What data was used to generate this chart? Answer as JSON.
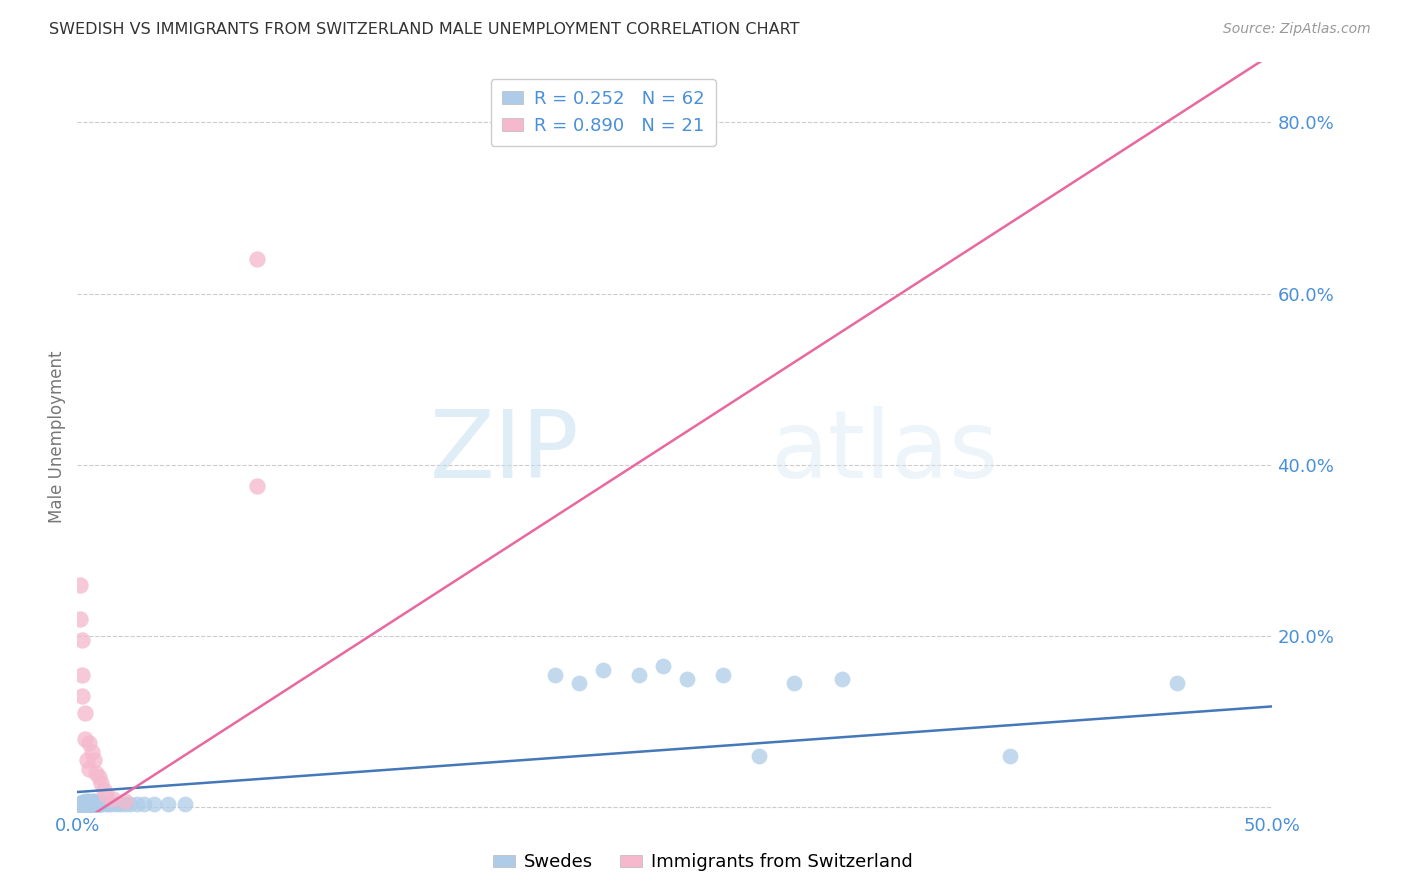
{
  "title": "SWEDISH VS IMMIGRANTS FROM SWITZERLAND MALE UNEMPLOYMENT CORRELATION CHART",
  "source": "Source: ZipAtlas.com",
  "ylabel": "Male Unemployment",
  "xlim": [
    0.0,
    0.5
  ],
  "ylim": [
    -0.005,
    0.87
  ],
  "grid_color": "#cccccc",
  "background_color": "#ffffff",
  "watermark_zip": "ZIP",
  "watermark_atlas": "atlas",
  "swedes_R": 0.252,
  "swedes_N": 62,
  "immigrants_R": 0.89,
  "immigrants_N": 21,
  "swedes_color": "#aecce8",
  "swedes_edge_color": "#aecce8",
  "swedes_line_color": "#4478b8",
  "immigrants_color": "#f5b8cc",
  "immigrants_edge_color": "#f5b8cc",
  "immigrants_line_color": "#e868a0",
  "sw_line_x0": 0.0,
  "sw_line_x1": 0.5,
  "sw_line_y0": 0.018,
  "sw_line_y1": 0.118,
  "imm_line_x0": 0.0,
  "imm_line_x1": 0.5,
  "imm_line_y0": -0.02,
  "imm_line_y1": 0.88,
  "swedes_x": [
    0.001,
    0.001,
    0.001,
    0.001,
    0.002,
    0.002,
    0.002,
    0.002,
    0.002,
    0.003,
    0.003,
    0.003,
    0.003,
    0.003,
    0.003,
    0.004,
    0.004,
    0.004,
    0.004,
    0.005,
    0.005,
    0.005,
    0.005,
    0.006,
    0.006,
    0.006,
    0.006,
    0.007,
    0.007,
    0.007,
    0.007,
    0.008,
    0.008,
    0.009,
    0.009,
    0.01,
    0.01,
    0.011,
    0.012,
    0.013,
    0.014,
    0.016,
    0.018,
    0.02,
    0.022,
    0.025,
    0.028,
    0.032,
    0.038,
    0.045,
    0.2,
    0.21,
    0.22,
    0.235,
    0.245,
    0.255,
    0.27,
    0.285,
    0.3,
    0.32,
    0.39,
    0.46
  ],
  "swedes_y": [
    0.005,
    0.004,
    0.003,
    0.003,
    0.006,
    0.005,
    0.004,
    0.003,
    0.002,
    0.008,
    0.006,
    0.005,
    0.004,
    0.003,
    0.002,
    0.007,
    0.005,
    0.004,
    0.002,
    0.007,
    0.006,
    0.004,
    0.003,
    0.008,
    0.006,
    0.005,
    0.003,
    0.008,
    0.006,
    0.005,
    0.003,
    0.007,
    0.004,
    0.006,
    0.003,
    0.006,
    0.004,
    0.005,
    0.004,
    0.004,
    0.004,
    0.004,
    0.004,
    0.004,
    0.004,
    0.004,
    0.004,
    0.004,
    0.004,
    0.004,
    0.155,
    0.145,
    0.16,
    0.155,
    0.165,
    0.15,
    0.155,
    0.06,
    0.145,
    0.15,
    0.06,
    0.145
  ],
  "immigrants_x": [
    0.001,
    0.001,
    0.002,
    0.002,
    0.002,
    0.003,
    0.003,
    0.004,
    0.005,
    0.005,
    0.006,
    0.007,
    0.008,
    0.009,
    0.01,
    0.011,
    0.012,
    0.015,
    0.02,
    0.075,
    0.075
  ],
  "immigrants_y": [
    0.26,
    0.22,
    0.195,
    0.155,
    0.13,
    0.11,
    0.08,
    0.055,
    0.075,
    0.045,
    0.065,
    0.055,
    0.04,
    0.035,
    0.028,
    0.02,
    0.015,
    0.01,
    0.008,
    0.375,
    0.64
  ]
}
